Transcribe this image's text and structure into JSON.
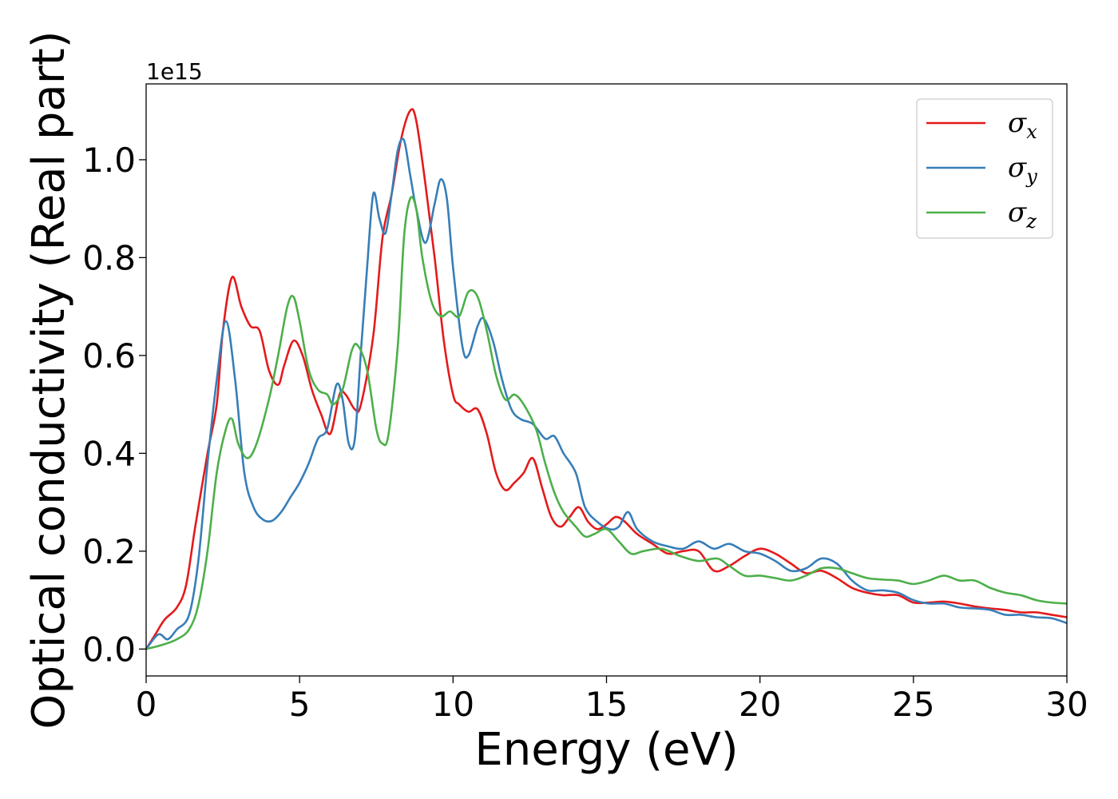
{
  "chart_data": {
    "type": "line",
    "xlabel": "Energy (eV)",
    "ylabel": "Optical conductivity (Real part)",
    "y_offset_label": "1e15",
    "xlim": [
      0,
      30
    ],
    "ylim": [
      -0.055,
      1.155
    ],
    "x_ticks": [
      0,
      5,
      10,
      15,
      20,
      25,
      30
    ],
    "x_tick_labels": [
      "0",
      "5",
      "10",
      "15",
      "20",
      "25",
      "30"
    ],
    "y_ticks": [
      0.0,
      0.2,
      0.4,
      0.6,
      0.8,
      1.0
    ],
    "y_tick_labels": [
      "0.0",
      "0.2",
      "0.4",
      "0.6",
      "0.8",
      "1.0"
    ],
    "grid": false,
    "legend_position": "top-right",
    "series": [
      {
        "name": "σx",
        "name_base": "σ",
        "name_sub": "x",
        "color": "#e41a1c",
        "points": [
          [
            0,
            0
          ],
          [
            0.3,
            0.03
          ],
          [
            0.6,
            0.06
          ],
          [
            1.0,
            0.085
          ],
          [
            1.3,
            0.13
          ],
          [
            1.6,
            0.25
          ],
          [
            2.0,
            0.4
          ],
          [
            2.3,
            0.5
          ],
          [
            2.5,
            0.65
          ],
          [
            2.8,
            0.76
          ],
          [
            3.1,
            0.7
          ],
          [
            3.4,
            0.66
          ],
          [
            3.7,
            0.65
          ],
          [
            4.0,
            0.57
          ],
          [
            4.3,
            0.54
          ],
          [
            4.5,
            0.58
          ],
          [
            4.8,
            0.63
          ],
          [
            5.1,
            0.6
          ],
          [
            5.4,
            0.53
          ],
          [
            5.7,
            0.48
          ],
          [
            6.0,
            0.44
          ],
          [
            6.3,
            0.52
          ],
          [
            6.5,
            0.52
          ],
          [
            6.8,
            0.49
          ],
          [
            7.0,
            0.5
          ],
          [
            7.4,
            0.64
          ],
          [
            7.7,
            0.84
          ],
          [
            8.0,
            0.93
          ],
          [
            8.3,
            1.04
          ],
          [
            8.6,
            1.1
          ],
          [
            8.8,
            1.08
          ],
          [
            9.1,
            0.95
          ],
          [
            9.4,
            0.8
          ],
          [
            9.7,
            0.63
          ],
          [
            10.0,
            0.52
          ],
          [
            10.2,
            0.5
          ],
          [
            10.5,
            0.485
          ],
          [
            10.8,
            0.49
          ],
          [
            11.1,
            0.44
          ],
          [
            11.4,
            0.36
          ],
          [
            11.7,
            0.325
          ],
          [
            12.0,
            0.34
          ],
          [
            12.3,
            0.36
          ],
          [
            12.6,
            0.39
          ],
          [
            12.9,
            0.33
          ],
          [
            13.2,
            0.27
          ],
          [
            13.5,
            0.25
          ],
          [
            13.8,
            0.27
          ],
          [
            14.1,
            0.29
          ],
          [
            14.4,
            0.26
          ],
          [
            14.7,
            0.245
          ],
          [
            15.0,
            0.255
          ],
          [
            15.3,
            0.27
          ],
          [
            15.6,
            0.26
          ],
          [
            16.0,
            0.235
          ],
          [
            16.5,
            0.215
          ],
          [
            17.0,
            0.195
          ],
          [
            17.5,
            0.2
          ],
          [
            18.0,
            0.2
          ],
          [
            18.5,
            0.16
          ],
          [
            19.0,
            0.17
          ],
          [
            19.5,
            0.19
          ],
          [
            20.0,
            0.205
          ],
          [
            20.5,
            0.195
          ],
          [
            21.0,
            0.175
          ],
          [
            21.5,
            0.155
          ],
          [
            22.0,
            0.16
          ],
          [
            22.5,
            0.145
          ],
          [
            23.0,
            0.125
          ],
          [
            23.5,
            0.115
          ],
          [
            24.0,
            0.11
          ],
          [
            24.5,
            0.11
          ],
          [
            25.0,
            0.095
          ],
          [
            25.5,
            0.095
          ],
          [
            26.0,
            0.097
          ],
          [
            26.5,
            0.093
          ],
          [
            27.0,
            0.087
          ],
          [
            27.5,
            0.083
          ],
          [
            28.0,
            0.08
          ],
          [
            28.5,
            0.075
          ],
          [
            29.0,
            0.075
          ],
          [
            29.5,
            0.07
          ],
          [
            30.0,
            0.065
          ]
        ]
      },
      {
        "name": "σy",
        "name_base": "σ",
        "name_sub": "y",
        "color": "#377eb8",
        "points": [
          [
            0,
            0
          ],
          [
            0.4,
            0.03
          ],
          [
            0.7,
            0.02
          ],
          [
            1.0,
            0.04
          ],
          [
            1.4,
            0.07
          ],
          [
            1.7,
            0.18
          ],
          [
            2.0,
            0.38
          ],
          [
            2.3,
            0.55
          ],
          [
            2.6,
            0.67
          ],
          [
            2.9,
            0.55
          ],
          [
            3.2,
            0.36
          ],
          [
            3.5,
            0.29
          ],
          [
            3.8,
            0.265
          ],
          [
            4.1,
            0.262
          ],
          [
            4.4,
            0.28
          ],
          [
            4.7,
            0.31
          ],
          [
            5.0,
            0.34
          ],
          [
            5.3,
            0.38
          ],
          [
            5.6,
            0.43
          ],
          [
            5.9,
            0.45
          ],
          [
            6.2,
            0.54
          ],
          [
            6.4,
            0.51
          ],
          [
            6.6,
            0.42
          ],
          [
            6.8,
            0.43
          ],
          [
            7.0,
            0.61
          ],
          [
            7.2,
            0.78
          ],
          [
            7.4,
            0.93
          ],
          [
            7.6,
            0.88
          ],
          [
            7.8,
            0.85
          ],
          [
            8.0,
            0.93
          ],
          [
            8.2,
            1.02
          ],
          [
            8.4,
            1.04
          ],
          [
            8.6,
            0.97
          ],
          [
            8.8,
            0.9
          ],
          [
            9.1,
            0.83
          ],
          [
            9.4,
            0.91
          ],
          [
            9.6,
            0.96
          ],
          [
            9.8,
            0.92
          ],
          [
            10.0,
            0.78
          ],
          [
            10.3,
            0.62
          ],
          [
            10.5,
            0.6
          ],
          [
            10.8,
            0.66
          ],
          [
            11.0,
            0.675
          ],
          [
            11.3,
            0.63
          ],
          [
            11.6,
            0.55
          ],
          [
            11.9,
            0.49
          ],
          [
            12.2,
            0.47
          ],
          [
            12.6,
            0.46
          ],
          [
            13.0,
            0.43
          ],
          [
            13.3,
            0.435
          ],
          [
            13.6,
            0.4
          ],
          [
            14.0,
            0.36
          ],
          [
            14.3,
            0.29
          ],
          [
            14.7,
            0.26
          ],
          [
            15.1,
            0.245
          ],
          [
            15.4,
            0.25
          ],
          [
            15.7,
            0.28
          ],
          [
            16.0,
            0.245
          ],
          [
            16.5,
            0.22
          ],
          [
            17.0,
            0.21
          ],
          [
            17.5,
            0.205
          ],
          [
            18.0,
            0.22
          ],
          [
            18.5,
            0.205
          ],
          [
            19.0,
            0.215
          ],
          [
            19.5,
            0.2
          ],
          [
            20.0,
            0.195
          ],
          [
            20.5,
            0.18
          ],
          [
            21.0,
            0.16
          ],
          [
            21.5,
            0.165
          ],
          [
            22.0,
            0.185
          ],
          [
            22.5,
            0.175
          ],
          [
            23.0,
            0.14
          ],
          [
            23.5,
            0.12
          ],
          [
            24.0,
            0.12
          ],
          [
            24.5,
            0.115
          ],
          [
            25.0,
            0.1
          ],
          [
            25.5,
            0.093
          ],
          [
            26.0,
            0.093
          ],
          [
            26.5,
            0.085
          ],
          [
            27.0,
            0.083
          ],
          [
            27.5,
            0.08
          ],
          [
            28.0,
            0.07
          ],
          [
            28.5,
            0.07
          ],
          [
            29.0,
            0.065
          ],
          [
            29.5,
            0.063
          ],
          [
            30.0,
            0.053
          ]
        ]
      },
      {
        "name": "σz",
        "name_base": "σ",
        "name_sub": "z",
        "color": "#4daf4a",
        "points": [
          [
            0,
            0
          ],
          [
            0.5,
            0.008
          ],
          [
            1.0,
            0.02
          ],
          [
            1.4,
            0.04
          ],
          [
            1.7,
            0.09
          ],
          [
            2.0,
            0.2
          ],
          [
            2.3,
            0.36
          ],
          [
            2.6,
            0.45
          ],
          [
            2.8,
            0.47
          ],
          [
            3.0,
            0.42
          ],
          [
            3.3,
            0.39
          ],
          [
            3.6,
            0.42
          ],
          [
            4.0,
            0.51
          ],
          [
            4.3,
            0.6
          ],
          [
            4.6,
            0.7
          ],
          [
            4.8,
            0.72
          ],
          [
            5.0,
            0.67
          ],
          [
            5.3,
            0.57
          ],
          [
            5.6,
            0.53
          ],
          [
            5.9,
            0.52
          ],
          [
            6.1,
            0.5
          ],
          [
            6.4,
            0.53
          ],
          [
            6.7,
            0.61
          ],
          [
            6.9,
            0.62
          ],
          [
            7.2,
            0.57
          ],
          [
            7.5,
            0.45
          ],
          [
            7.7,
            0.42
          ],
          [
            7.9,
            0.44
          ],
          [
            8.2,
            0.62
          ],
          [
            8.4,
            0.84
          ],
          [
            8.6,
            0.92
          ],
          [
            8.8,
            0.9
          ],
          [
            9.0,
            0.8
          ],
          [
            9.3,
            0.71
          ],
          [
            9.6,
            0.68
          ],
          [
            9.9,
            0.69
          ],
          [
            10.2,
            0.68
          ],
          [
            10.5,
            0.73
          ],
          [
            10.8,
            0.72
          ],
          [
            11.1,
            0.65
          ],
          [
            11.4,
            0.56
          ],
          [
            11.7,
            0.51
          ],
          [
            12.0,
            0.52
          ],
          [
            12.3,
            0.5
          ],
          [
            12.7,
            0.45
          ],
          [
            13.0,
            0.38
          ],
          [
            13.3,
            0.32
          ],
          [
            13.6,
            0.28
          ],
          [
            14.0,
            0.25
          ],
          [
            14.3,
            0.23
          ],
          [
            14.6,
            0.235
          ],
          [
            15.0,
            0.245
          ],
          [
            15.4,
            0.22
          ],
          [
            15.8,
            0.195
          ],
          [
            16.2,
            0.2
          ],
          [
            16.8,
            0.205
          ],
          [
            17.4,
            0.19
          ],
          [
            18.0,
            0.18
          ],
          [
            18.6,
            0.185
          ],
          [
            19.0,
            0.17
          ],
          [
            19.5,
            0.15
          ],
          [
            20.0,
            0.15
          ],
          [
            20.5,
            0.145
          ],
          [
            21.0,
            0.14
          ],
          [
            21.5,
            0.15
          ],
          [
            22.0,
            0.165
          ],
          [
            22.5,
            0.165
          ],
          [
            23.0,
            0.155
          ],
          [
            23.5,
            0.145
          ],
          [
            24.0,
            0.142
          ],
          [
            24.5,
            0.14
          ],
          [
            25.0,
            0.133
          ],
          [
            25.5,
            0.14
          ],
          [
            26.0,
            0.15
          ],
          [
            26.5,
            0.14
          ],
          [
            27.0,
            0.14
          ],
          [
            27.5,
            0.125
          ],
          [
            28.0,
            0.115
          ],
          [
            28.5,
            0.11
          ],
          [
            29.0,
            0.1
          ],
          [
            29.5,
            0.095
          ],
          [
            30.0,
            0.093
          ]
        ]
      }
    ]
  }
}
